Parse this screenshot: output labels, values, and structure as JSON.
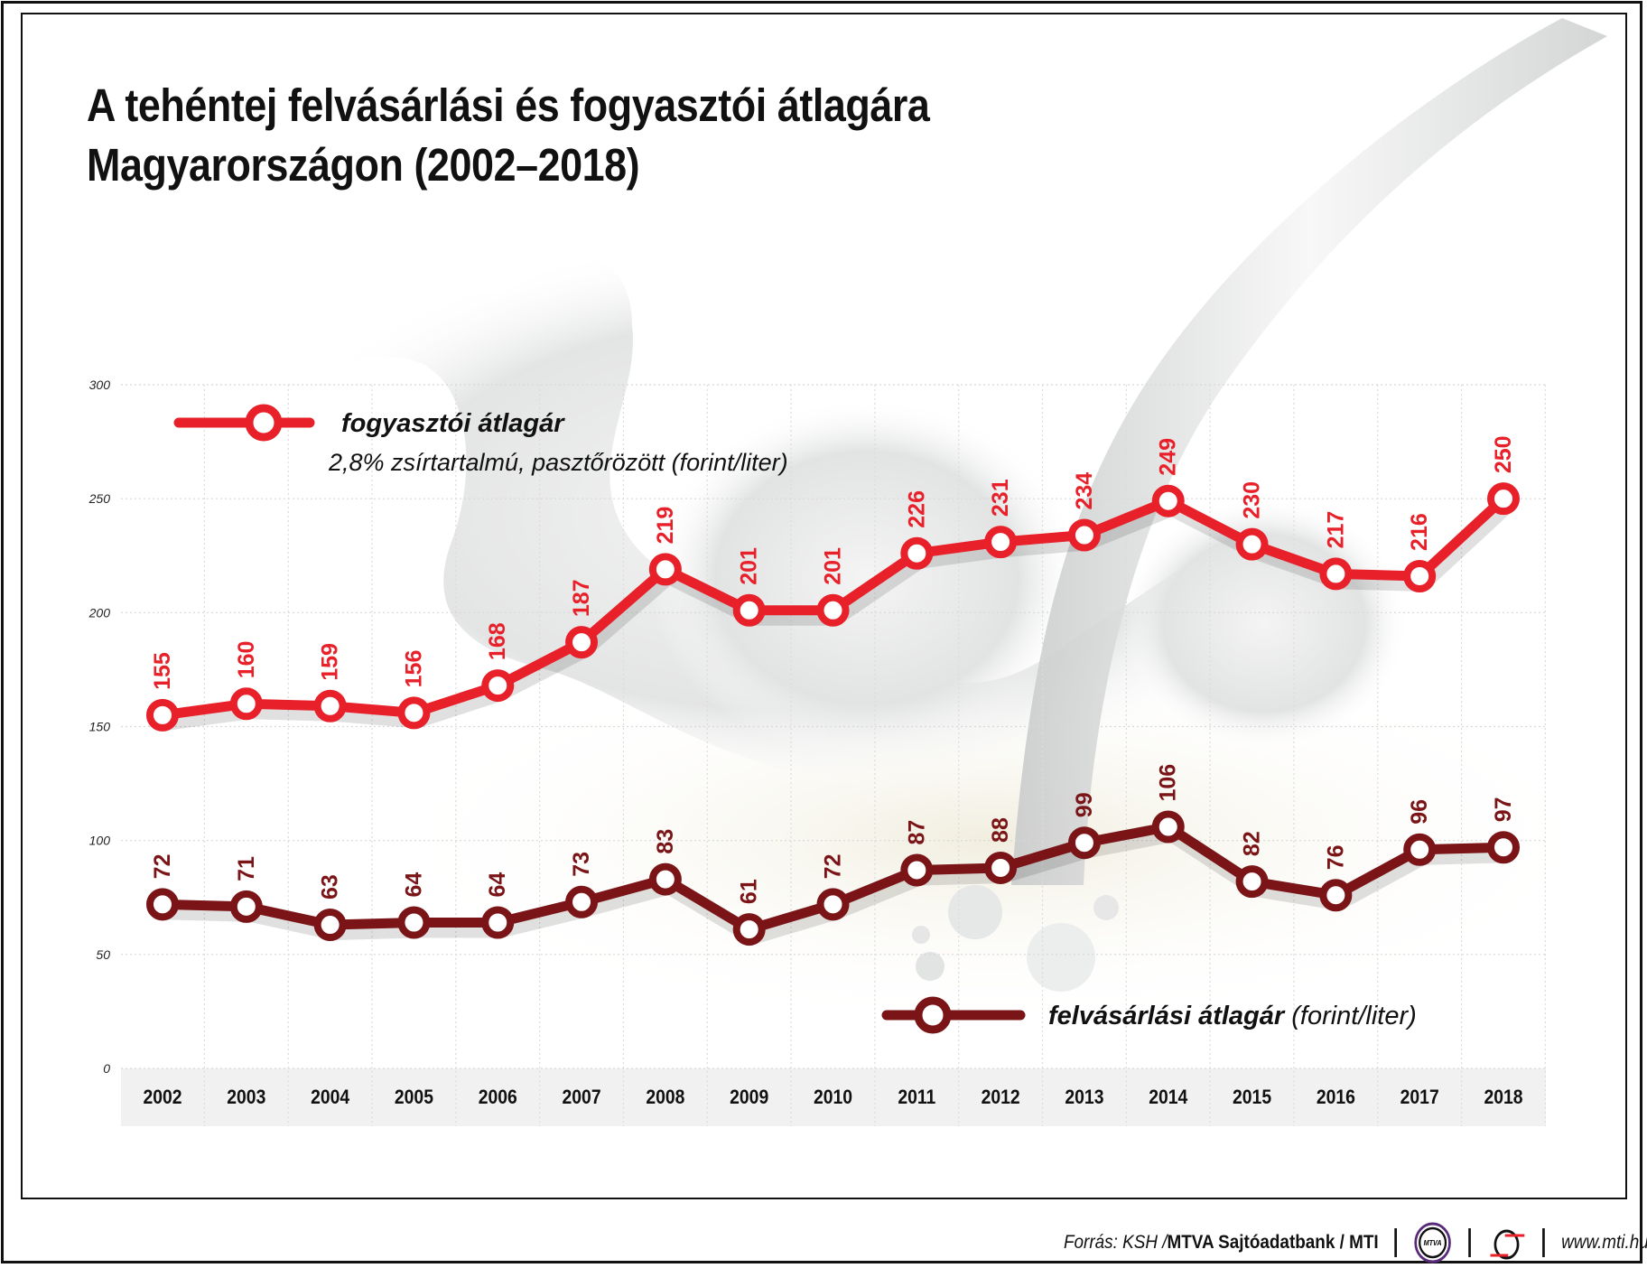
{
  "title_lines": [
    "A tehéntej felvásárlási és fogyasztói átlagára",
    "Magyarországon (2002–2018)"
  ],
  "chart_data": {
    "type": "line",
    "title": "A tehéntej felvásárlási és fogyasztói átlagára Magyarországon (2002–2018)",
    "categories": [
      "2002",
      "2003",
      "2004",
      "2005",
      "2006",
      "2007",
      "2008",
      "2009",
      "2010",
      "2011",
      "2012",
      "2013",
      "2014",
      "2015",
      "2016",
      "2017",
      "2018"
    ],
    "yticks": [
      0,
      50,
      100,
      150,
      200,
      250,
      300
    ],
    "ylim": [
      0,
      300
    ],
    "grid": true,
    "series": [
      {
        "name": "fogyasztói átlagár",
        "subtitle": "2,8% zsírtartalmú, pasztőrözött (forint/liter)",
        "color": "#e8202a",
        "values": [
          155,
          160,
          159,
          156,
          168,
          187,
          219,
          201,
          201,
          226,
          231,
          234,
          249,
          230,
          217,
          216,
          250
        ]
      },
      {
        "name": "felvásárlási átlagár",
        "unit": "(forint/liter)",
        "color": "#7a1416",
        "values": [
          72,
          71,
          63,
          64,
          64,
          73,
          83,
          61,
          72,
          87,
          88,
          99,
          106,
          82,
          76,
          96,
          97
        ]
      }
    ]
  },
  "footer": {
    "source_prefix": "Forrás: KSH / ",
    "source_bold": "MTVA Sajtóadatbank / MTI",
    "logo_mtva": "MTVA",
    "url": "www.mti.hu"
  }
}
